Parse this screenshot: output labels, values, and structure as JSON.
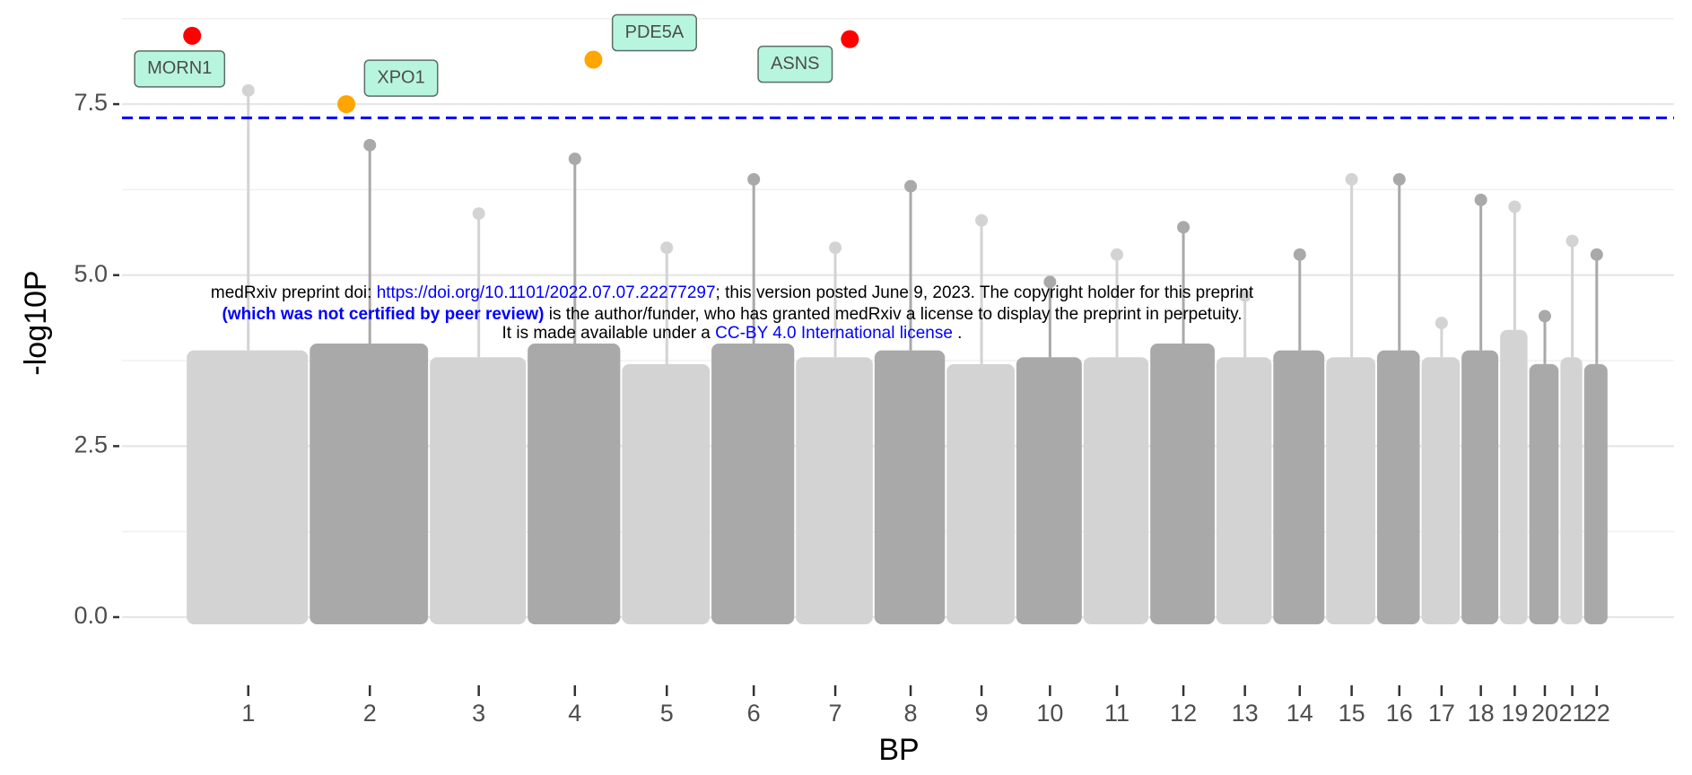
{
  "chart_data": {
    "type": "manhattan",
    "xlabel": "BP",
    "ylabel": "-log10P",
    "categories": [
      "1",
      "2",
      "3",
      "4",
      "5",
      "6",
      "7",
      "8",
      "9",
      "10",
      "11",
      "12",
      "13",
      "14",
      "15",
      "16",
      "17",
      "18",
      "19",
      "20",
      "21",
      "22"
    ],
    "chromosome_lengths": [
      249,
      243,
      198,
      191,
      181,
      171,
      159,
      146,
      141,
      136,
      135,
      134,
      115,
      107,
      103,
      90,
      81,
      78,
      59,
      63,
      48,
      51
    ],
    "bulk": [
      3.9,
      4.0,
      3.8,
      4.0,
      3.7,
      4.0,
      3.8,
      3.9,
      3.7,
      3.8,
      3.8,
      4.0,
      3.8,
      3.9,
      3.8,
      3.9,
      3.8,
      3.9,
      4.2,
      3.7,
      3.8,
      3.7
    ],
    "values": [
      7.7,
      6.9,
      5.9,
      6.7,
      5.4,
      6.4,
      5.4,
      6.3,
      5.8,
      4.9,
      5.3,
      5.7,
      4.7,
      5.3,
      6.4,
      6.4,
      4.3,
      6.1,
      6.0,
      4.4,
      5.5,
      5.3
    ],
    "colors": [
      "#d3d3d3",
      "#a9a9a9"
    ],
    "hits": [
      {
        "label": "MORN1",
        "chromosome": 0,
        "x": 11,
        "y": 8.5,
        "color": "#ff0000"
      },
      {
        "label": "XPO1",
        "chromosome": 1,
        "x": 74,
        "y": 7.5,
        "color": "#ffa500"
      },
      {
        "label": "PDE5A",
        "chromosome": 3,
        "x": 133,
        "y": 8.15,
        "color": "#ffa500"
      },
      {
        "label": "ASNS",
        "chromosome": 6,
        "x": 109,
        "y": 8.45,
        "color": "#ff0000"
      }
    ],
    "threshold": 7.3,
    "threshold_color": "#0000ff",
    "xlim": [
      -131,
      3010
    ],
    "ylim": [
      0,
      9
    ],
    "yticks": [
      {
        "value": 0,
        "label": "0.0"
      },
      {
        "value": 2.5,
        "label": "2.5"
      },
      {
        "value": 5,
        "label": "5.0"
      },
      {
        "value": 7.5,
        "label": "7.5"
      }
    ],
    "y_minor_grid": [
      1.25,
      3.75,
      6.25,
      8.75
    ],
    "grid": true
  },
  "watermark": {
    "line1": [
      "medRxiv preprint doi: ",
      "https://doi.org/10.1101/2022.07.07.22277297",
      "; this version posted June 9, 2023. The copyright holder for this preprint"
    ],
    "line2": [
      "(which was not certified by peer review)",
      " is the author/funder, who has granted medRxiv a license to display the preprint in perpetuity."
    ],
    "line3": [
      "It is made available under a ",
      "CC-BY 4.0 International license",
      " ."
    ]
  }
}
